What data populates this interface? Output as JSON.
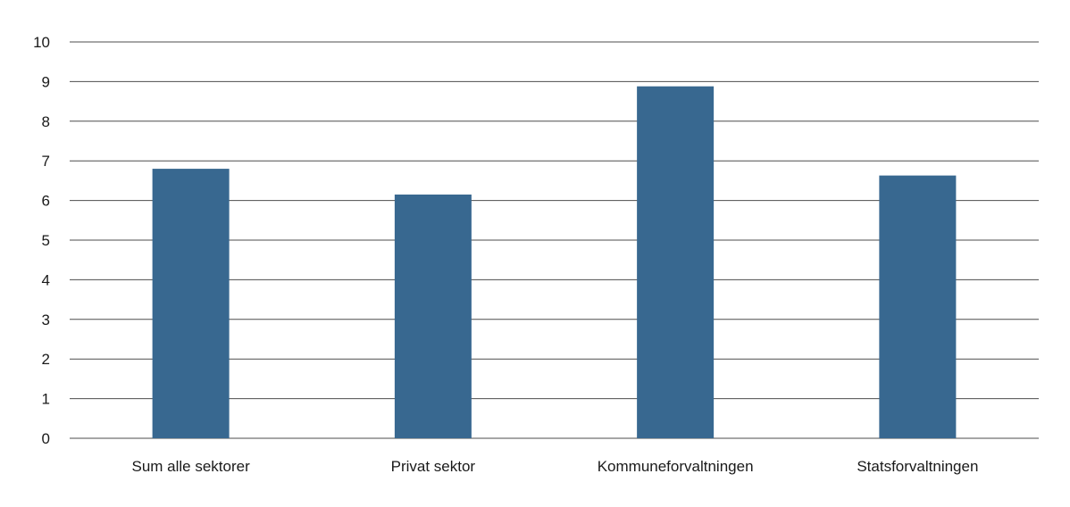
{
  "chart_data": {
    "type": "bar",
    "categories": [
      "Sum alle sektorer",
      "Privat sektor",
      "Kommuneforvaltningen",
      "Statsforvaltningen"
    ],
    "values": [
      6.8,
      6.15,
      8.88,
      6.63
    ],
    "ylim": [
      0,
      10
    ],
    "yticks": [
      "0",
      "1",
      "2",
      "3",
      "4",
      "5",
      "6",
      "7",
      "8",
      "9",
      "10"
    ],
    "grid": true,
    "bar_color": "#386890",
    "grid_color": "#4d4d4d"
  }
}
